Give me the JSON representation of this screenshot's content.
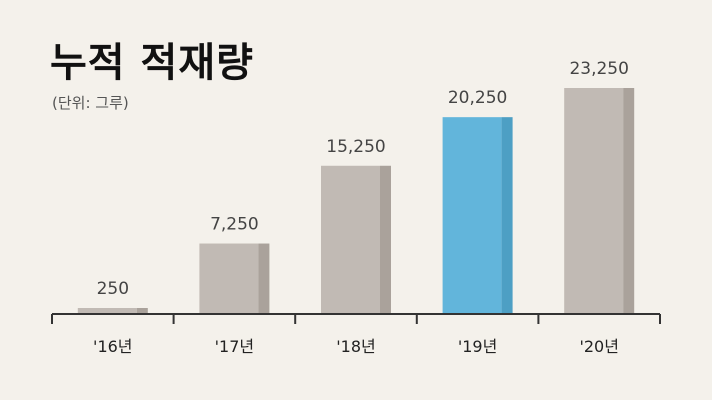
{
  "chart_data": {
    "type": "bar",
    "title": "누적 적재량",
    "subtitle": "(단위: 그루)",
    "categories": [
      "'16년",
      "'17년",
      "'18년",
      "'19년",
      "'20년"
    ],
    "values": [
      250,
      7250,
      15250,
      20250,
      23250
    ],
    "value_labels": [
      "250",
      "7,250",
      "15,250",
      "20,250",
      "23,250"
    ],
    "highlight_index": 3,
    "colors": {
      "bar_front": "#c1bab4",
      "bar_side": "#aaa29b",
      "highlight_front": "#62b5db",
      "highlight_side": "#4d9fc4",
      "axis": "#333333"
    },
    "ylim": [
      0,
      23250
    ],
    "grid": false,
    "legend": "none"
  }
}
